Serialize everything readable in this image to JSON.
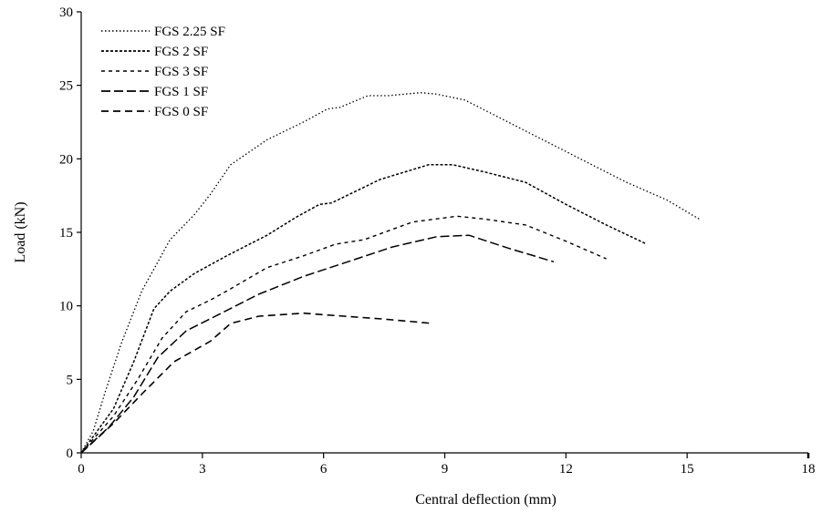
{
  "chart_data": {
    "type": "line",
    "title": "",
    "xlabel": "Central deflection (mm)",
    "ylabel": "Load (kN)",
    "xlim": [
      0,
      18
    ],
    "ylim": [
      0,
      30
    ],
    "xticks": [
      0,
      3,
      6,
      9,
      12,
      15,
      18
    ],
    "yticks": [
      0,
      5,
      10,
      15,
      20,
      25,
      30
    ],
    "xtick_labels": [
      "0",
      "3",
      "6",
      "9",
      "12",
      "15",
      "18"
    ],
    "ytick_labels": [
      "0",
      "5",
      "10",
      "15",
      "20",
      "25",
      "30"
    ],
    "grid": false,
    "legend_position": "top-left",
    "series": [
      {
        "name": "FGS 2.25 SF",
        "dash": "dotted",
        "x": [
          0,
          0.3,
          0.6,
          1.0,
          1.5,
          2.2,
          2.8,
          3.2,
          3.7,
          4.6,
          5.5,
          6.1,
          6.4,
          7.1,
          7.6,
          8.4,
          8.8,
          9.5,
          10.5,
          11.5,
          12.5,
          13.5,
          14.5,
          15.3
        ],
        "y": [
          0,
          1.5,
          4.2,
          7.5,
          11.0,
          14.5,
          16.2,
          17.6,
          19.6,
          21.3,
          22.5,
          23.4,
          23.5,
          24.3,
          24.3,
          24.5,
          24.4,
          24.0,
          22.6,
          21.2,
          19.8,
          18.4,
          17.2,
          15.9
        ]
      },
      {
        "name": "FGS 2 SF",
        "dash": "short-dash",
        "x": [
          0,
          0.8,
          1.3,
          1.8,
          2.2,
          2.8,
          3.6,
          4.6,
          5.3,
          5.9,
          6.2,
          6.8,
          7.4,
          8.0,
          8.6,
          9.2,
          10.0,
          11.0,
          12.0,
          13.0,
          14.0
        ],
        "y": [
          0,
          3.0,
          6.2,
          9.8,
          11.0,
          12.2,
          13.4,
          14.8,
          16.0,
          16.9,
          17.0,
          17.8,
          18.6,
          19.1,
          19.6,
          19.6,
          19.1,
          18.4,
          16.9,
          15.5,
          14.2
        ]
      },
      {
        "name": "FGS 3 SF",
        "dash": "dashed",
        "x": [
          0,
          0.8,
          1.4,
          2.0,
          2.6,
          3.2,
          3.6,
          4.6,
          5.5,
          6.3,
          7.0,
          7.5,
          8.2,
          9.3,
          10.0,
          11.0,
          12.0,
          13.0
        ],
        "y": [
          0,
          2.5,
          5.0,
          7.8,
          9.6,
          10.4,
          11.0,
          12.6,
          13.4,
          14.2,
          14.5,
          15.0,
          15.7,
          16.1,
          15.9,
          15.5,
          14.4,
          13.2
        ]
      },
      {
        "name": "FGS 1 SF",
        "dash": "long-dash",
        "x": [
          0,
          0.7,
          1.3,
          1.9,
          2.6,
          3.4,
          4.4,
          5.5,
          6.6,
          7.7,
          8.8,
          9.6,
          10.6,
          11.7
        ],
        "y": [
          0,
          1.8,
          3.8,
          6.5,
          8.3,
          9.4,
          10.8,
          12.0,
          13.0,
          14.0,
          14.7,
          14.8,
          13.9,
          13.0
        ]
      },
      {
        "name": "FGS 0 SF",
        "dash": "heavy-dash",
        "x": [
          0,
          0.8,
          1.5,
          2.3,
          3.2,
          3.7,
          4.4,
          5.5,
          6.5,
          7.5,
          8.7
        ],
        "y": [
          0,
          2.0,
          4.0,
          6.2,
          7.6,
          8.8,
          9.3,
          9.5,
          9.3,
          9.1,
          8.8
        ]
      }
    ]
  }
}
